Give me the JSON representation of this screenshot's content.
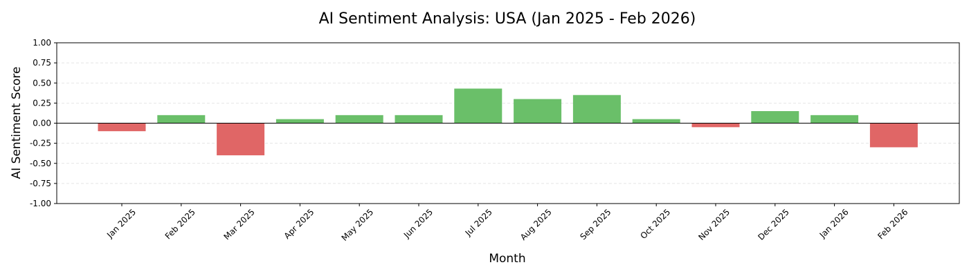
{
  "chart_data": {
    "type": "bar",
    "title": "AI Sentiment Analysis: USA (Jan 2025 - Feb 2026)",
    "xlabel": "Month",
    "ylabel": "AI Sentiment Score",
    "categories": [
      "Jan 2025",
      "Feb 2025",
      "Mar 2025",
      "Apr 2025",
      "May 2025",
      "Jun 2025",
      "Jul 2025",
      "Aug 2025",
      "Sep 2025",
      "Oct 2025",
      "Nov 2025",
      "Dec 2025",
      "Jan 2026",
      "Feb 2026"
    ],
    "values": [
      -0.1,
      0.1,
      -0.4,
      0.05,
      0.1,
      0.1,
      0.43,
      0.3,
      0.35,
      0.05,
      -0.05,
      0.15,
      0.1,
      -0.3
    ],
    "ylim": [
      -1.0,
      1.0
    ],
    "yticks": [
      "1.00",
      "0.75",
      "0.50",
      "0.25",
      "0.00",
      "-0.25",
      "-0.50",
      "-0.75",
      "-1.00"
    ],
    "grid": "horizontal dashed",
    "colors": {
      "positive": "#6abf69",
      "negative": "#e06666",
      "zero_line": "#000000",
      "grid": "#dddddd"
    }
  }
}
